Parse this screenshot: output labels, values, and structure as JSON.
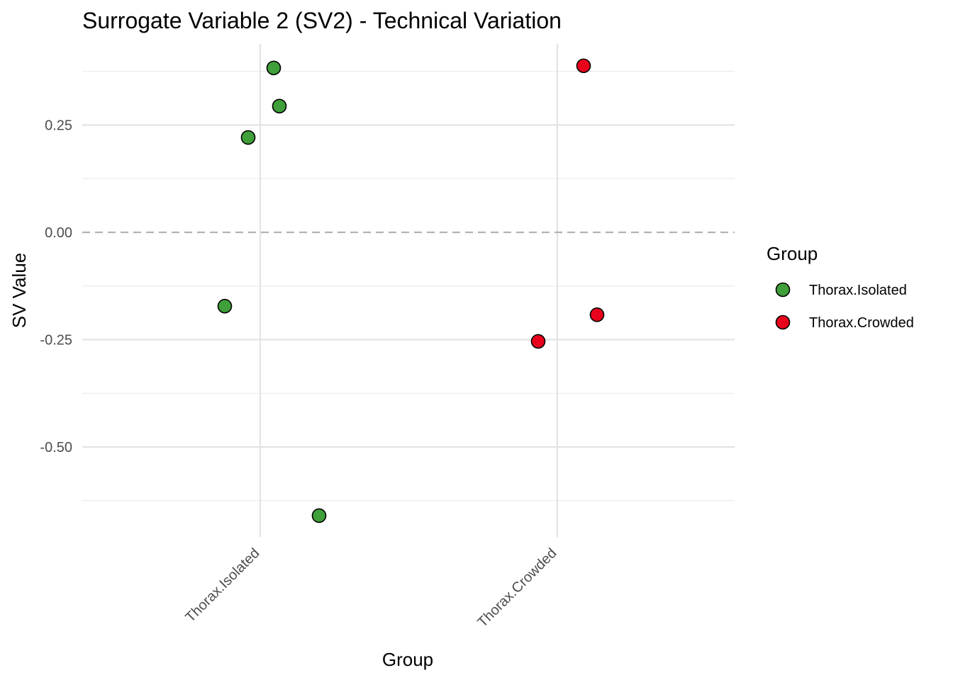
{
  "chart_data": {
    "type": "scatter",
    "title": "Surrogate Variable 2 (SV2) - Technical Variation",
    "xlabel": "Group",
    "ylabel": "SV Value",
    "categories": [
      "Thorax.Isolated",
      "Thorax.Crowded"
    ],
    "ylim": [
      -0.62,
      0.42
    ],
    "yticks": [
      "0.25",
      "0.00",
      "-0.25",
      "-0.50"
    ],
    "ytick_values": [
      0.25,
      0.0,
      -0.25,
      -0.5
    ],
    "reference_line": {
      "y": 0.0,
      "style": "dashed"
    },
    "grid": true,
    "series": [
      {
        "name": "Thorax.Isolated",
        "color": "#3f9f3a",
        "points": [
          {
            "category": "Thorax.Isolated",
            "y": 0.383
          },
          {
            "category": "Thorax.Isolated",
            "y": 0.294
          },
          {
            "category": "Thorax.Isolated",
            "y": 0.221
          },
          {
            "category": "Thorax.Isolated",
            "y": -0.172
          },
          {
            "category": "Thorax.Isolated",
            "y": -0.66
          }
        ]
      },
      {
        "name": "Thorax.Crowded",
        "color": "#e8001c",
        "points": [
          {
            "category": "Thorax.Crowded",
            "y": 0.388
          },
          {
            "category": "Thorax.Crowded",
            "y": -0.192
          },
          {
            "category": "Thorax.Crowded",
            "y": -0.254
          }
        ]
      }
    ],
    "legend": {
      "title": "Group",
      "position": "right"
    }
  }
}
